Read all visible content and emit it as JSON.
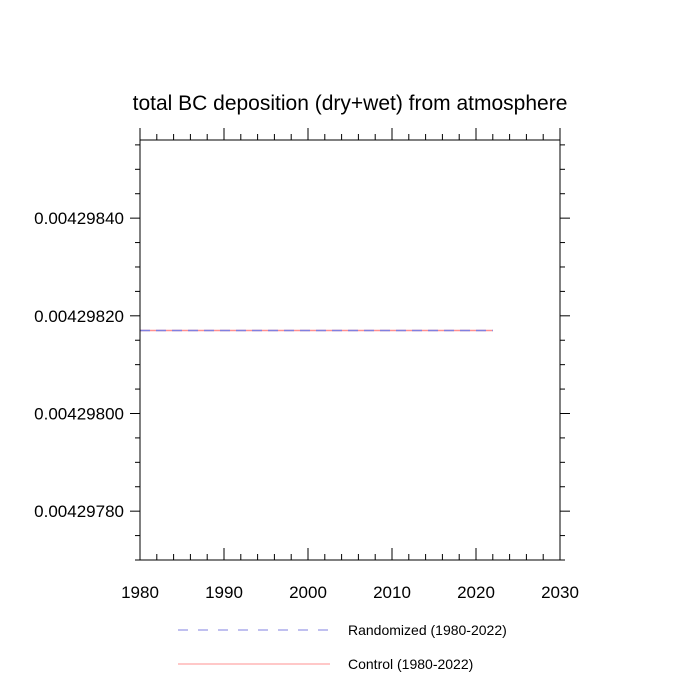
{
  "chart_data": {
    "type": "line",
    "title": "total BC deposition (dry+wet) from atmosphere",
    "xlabel": "",
    "ylabel": "",
    "xlim": [
      1980,
      2030
    ],
    "ylim": [
      0.0042977,
      0.00429856
    ],
    "xticks": [
      "1980",
      "1990",
      "2000",
      "2010",
      "2020",
      "2030"
    ],
    "yticks": [
      "0.00429780",
      "0.00429800",
      "0.00429820",
      "0.00429840"
    ],
    "grid": false,
    "legend_position": "bottom",
    "series": [
      {
        "name": "Randomized (1980-2022)",
        "color": "#8080e0",
        "style": "dashed",
        "x": [
          1980,
          2022
        ],
        "y": [
          0.00429817,
          0.00429817
        ]
      },
      {
        "name": "Control (1980-2022)",
        "color": "#ff9090",
        "style": "solid",
        "x": [
          1980,
          2022
        ],
        "y": [
          0.00429817,
          0.00429817
        ]
      }
    ]
  }
}
